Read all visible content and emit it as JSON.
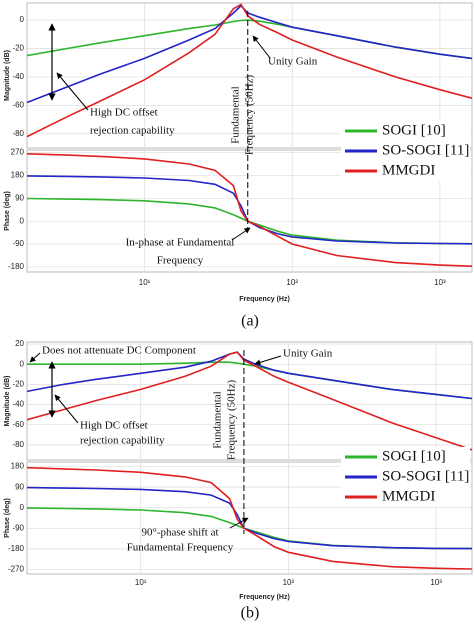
{
  "chart_data": [
    {
      "type": "bode",
      "caption": "(a)",
      "xlabel": "Frequency (Hz)",
      "xlim": [
        1.6,
        1650
      ],
      "log_x": true,
      "grid": true,
      "xticks": [
        {
          "value": 10,
          "label": "10¹"
        },
        {
          "value": 100,
          "label": "10²"
        },
        {
          "value": 1000,
          "label": "10³"
        }
      ],
      "x": [
        1.6,
        3,
        5,
        10,
        20,
        30,
        40,
        45,
        50,
        60,
        80,
        100,
        200,
        500,
        1000,
        1650
      ],
      "magnitude": {
        "ylabel": "Magnitude (dB)",
        "ylim": [
          -90,
          12
        ],
        "yticks": [
          0,
          -20,
          -40,
          -60,
          -80
        ]
      },
      "phase": {
        "ylabel": "Phase (deg)",
        "ylim": [
          -200,
          280
        ],
        "yticks": [
          270,
          180,
          90,
          0,
          -90,
          -180
        ]
      },
      "series": [
        {
          "name": "SOGI [10]",
          "color": "#2db52d",
          "magnitude": [
            -25,
            -20,
            -16,
            -11,
            -6,
            -3.5,
            -1,
            -0.3,
            0,
            -0.8,
            -3,
            -5,
            -11,
            -19,
            -24,
            -27
          ],
          "phase": [
            89,
            87,
            85,
            80,
            68,
            52,
            25,
            12,
            0,
            -15,
            -40,
            -55,
            -75,
            -85,
            -88,
            -89
          ]
        },
        {
          "name": "SO-SOGI [11]",
          "color": "#2424c8",
          "magnitude": [
            -58,
            -47,
            -38,
            -27,
            -14,
            -6,
            5,
            10,
            5,
            2,
            -2,
            -5,
            -11,
            -19,
            -24,
            -27
          ],
          "phase": [
            178,
            176,
            174,
            170,
            160,
            145,
            110,
            60,
            0,
            -25,
            -50,
            -62,
            -78,
            -86,
            -88,
            -89
          ]
        },
        {
          "name": "MMGDI",
          "color": "#e02020",
          "magnitude": [
            -82,
            -68,
            -57,
            -42,
            -23,
            -10,
            8,
            11,
            3,
            -3,
            -9,
            -14,
            -26,
            -40,
            -49,
            -55
          ],
          "phase": [
            265,
            260,
            255,
            245,
            225,
            200,
            140,
            40,
            0,
            -20,
            -60,
            -90,
            -135,
            -163,
            -173,
            -177
          ]
        }
      ],
      "annotations": [
        [
          "Unity Gain"
        ],
        [
          "High DC offset",
          "rejection capability"
        ],
        [
          "Fundamental",
          "Frequency (50Hz)"
        ],
        [
          "In-phase at Fundamental",
          "Frequency"
        ]
      ]
    },
    {
      "type": "bode",
      "caption": "(b)",
      "xlabel": "Frequency (Hz)",
      "xlim": [
        1.7,
        1750
      ],
      "log_x": true,
      "grid": true,
      "xticks": [
        {
          "value": 10,
          "label": "10¹"
        },
        {
          "value": 100,
          "label": "10²"
        },
        {
          "value": 1000,
          "label": "10³"
        }
      ],
      "x": [
        1.7,
        3,
        5,
        10,
        20,
        30,
        40,
        45,
        50,
        60,
        80,
        100,
        200,
        500,
        1000,
        1750
      ],
      "magnitude": {
        "ylabel": "Magnitude (dB)",
        "ylim": [
          -95,
          22
        ],
        "yticks": [
          20,
          0,
          -20,
          -40,
          -60,
          -80
        ]
      },
      "phase": {
        "ylabel": "Phase (deg)",
        "ylim": [
          -290,
          200
        ],
        "yticks": [
          180,
          90,
          0,
          -90,
          -180,
          -270
        ]
      },
      "series": [
        {
          "name": "SOGI [10]",
          "color": "#2db52d",
          "magnitude": [
            0,
            0,
            0,
            0,
            1,
            2,
            2,
            1,
            0,
            -2,
            -6,
            -9,
            -16,
            -25,
            -30,
            -34
          ],
          "phase": [
            -1,
            -3,
            -5,
            -10,
            -22,
            -38,
            -65,
            -78,
            -90,
            -105,
            -130,
            -145,
            -165,
            -175,
            -178,
            -179
          ]
        },
        {
          "name": "SO-SOGI [11]",
          "color": "#2424c8",
          "magnitude": [
            -27,
            -20,
            -15,
            -9,
            -3,
            3,
            10,
            12,
            5,
            0,
            -6,
            -9,
            -16,
            -25,
            -30,
            -34
          ],
          "phase": [
            88,
            86,
            84,
            80,
            70,
            55,
            20,
            -30,
            -90,
            -110,
            -135,
            -148,
            -166,
            -175,
            -178,
            -179
          ]
        },
        {
          "name": "MMGDI",
          "color": "#e02020",
          "magnitude": [
            -55,
            -45,
            -36,
            -25,
            -12,
            -2,
            10,
            12,
            4,
            -2,
            -12,
            -18,
            -35,
            -58,
            -73,
            -85
          ],
          "phase": [
            175,
            170,
            165,
            155,
            135,
            110,
            40,
            -50,
            -90,
            -120,
            -170,
            -195,
            -235,
            -258,
            -265,
            -268
          ]
        }
      ],
      "annotations": [
        [
          "Does not attenuate DC Component"
        ],
        [
          "Unity Gain"
        ],
        [
          "High DC offset",
          "rejection capability"
        ],
        [
          "Fundamental",
          "Frequency (50Hz)"
        ],
        [
          "90°-phase shift at",
          "Fundamental Frequency"
        ]
      ]
    }
  ]
}
